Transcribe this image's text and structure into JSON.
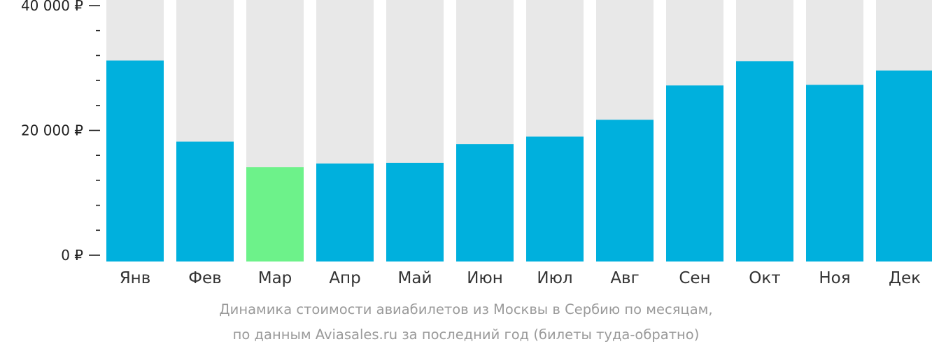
{
  "chart_data": {
    "type": "bar",
    "currency": "₽",
    "categories": [
      "Янв",
      "Фев",
      "Мар",
      "Апр",
      "Май",
      "Июн",
      "Июл",
      "Авг",
      "Сен",
      "Окт",
      "Ноя",
      "Дек"
    ],
    "values": [
      31200,
      18200,
      14100,
      14700,
      14800,
      17800,
      19000,
      21700,
      27200,
      31100,
      27300,
      29600
    ],
    "highlight_index": 2,
    "ylim": [
      0,
      40000
    ],
    "yticks": [
      {
        "value": 0,
        "label": "0 ₽"
      },
      {
        "value": 20000,
        "label": "20 000 ₽"
      },
      {
        "value": 40000,
        "label": "40 000 ₽"
      }
    ],
    "minor_tick_step": 4000,
    "colors": {
      "bar": "#00b0dd",
      "highlight": "#6df28a",
      "background_bar": "#e8e8e8"
    },
    "title": "Динамика стоимости авиабилетов из Москвы в Сербию по месяцам,",
    "subtitle": "по данным Aviasales.ru за последний год (билеты туда-обратно)"
  }
}
